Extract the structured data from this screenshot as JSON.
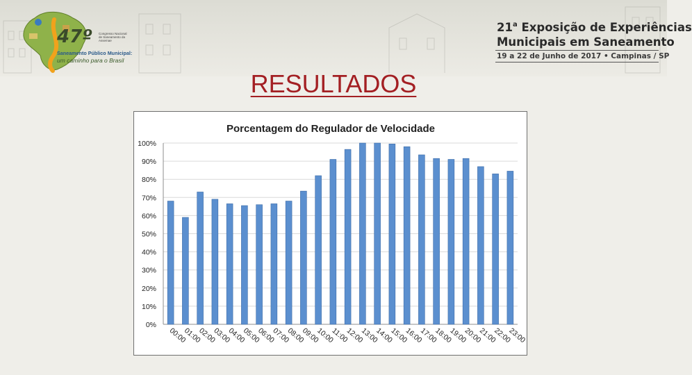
{
  "header": {
    "left_logo": {
      "edition": "47º",
      "congress": "Congresso Nacional de Saneamento da Assemae",
      "line1": "Saneamento Público Municipal:",
      "line2": "um caminho para o Brasil"
    },
    "right_logo": {
      "line1_num": "21",
      "line1_sup": "a",
      "line1_rest": " Exposição de Experiências",
      "line2": "Municipais em Saneamento",
      "line3": "19 a 22 de Junho de 2017 • Campinas / SP"
    }
  },
  "slide": {
    "title": "RESULTADOS"
  },
  "colors": {
    "title_red": "#a31f23",
    "bar_fill": "#5b8fcf",
    "bar_stroke": "#3f6ea8",
    "grid": "#d9d9d9"
  },
  "chart_data": {
    "type": "bar",
    "title": "Porcentagem do Regulador de Velocidade",
    "xlabel": "",
    "ylabel": "",
    "ylim": [
      0,
      100
    ],
    "yticks": [
      "0%",
      "10%",
      "20%",
      "30%",
      "40%",
      "50%",
      "60%",
      "70%",
      "80%",
      "90%",
      "100%"
    ],
    "categories": [
      "00:00",
      "01:00",
      "02:00",
      "03:00",
      "04:00",
      "05:00",
      "06:00",
      "07:00",
      "08:00",
      "09:00",
      "10:00",
      "11:00",
      "12:00",
      "13:00",
      "14:00",
      "15:00",
      "16:00",
      "17:00",
      "18:00",
      "19:00",
      "20:00",
      "21:00",
      "22:00",
      "23:00"
    ],
    "values": [
      68,
      59,
      73,
      69,
      66.5,
      65.5,
      66,
      66.5,
      68,
      73.5,
      82,
      91,
      96.5,
      100,
      100,
      99.5,
      98,
      93.5,
      91.5,
      91,
      91.5,
      87,
      83,
      84.5
    ],
    "grid": true,
    "legend": "none"
  }
}
